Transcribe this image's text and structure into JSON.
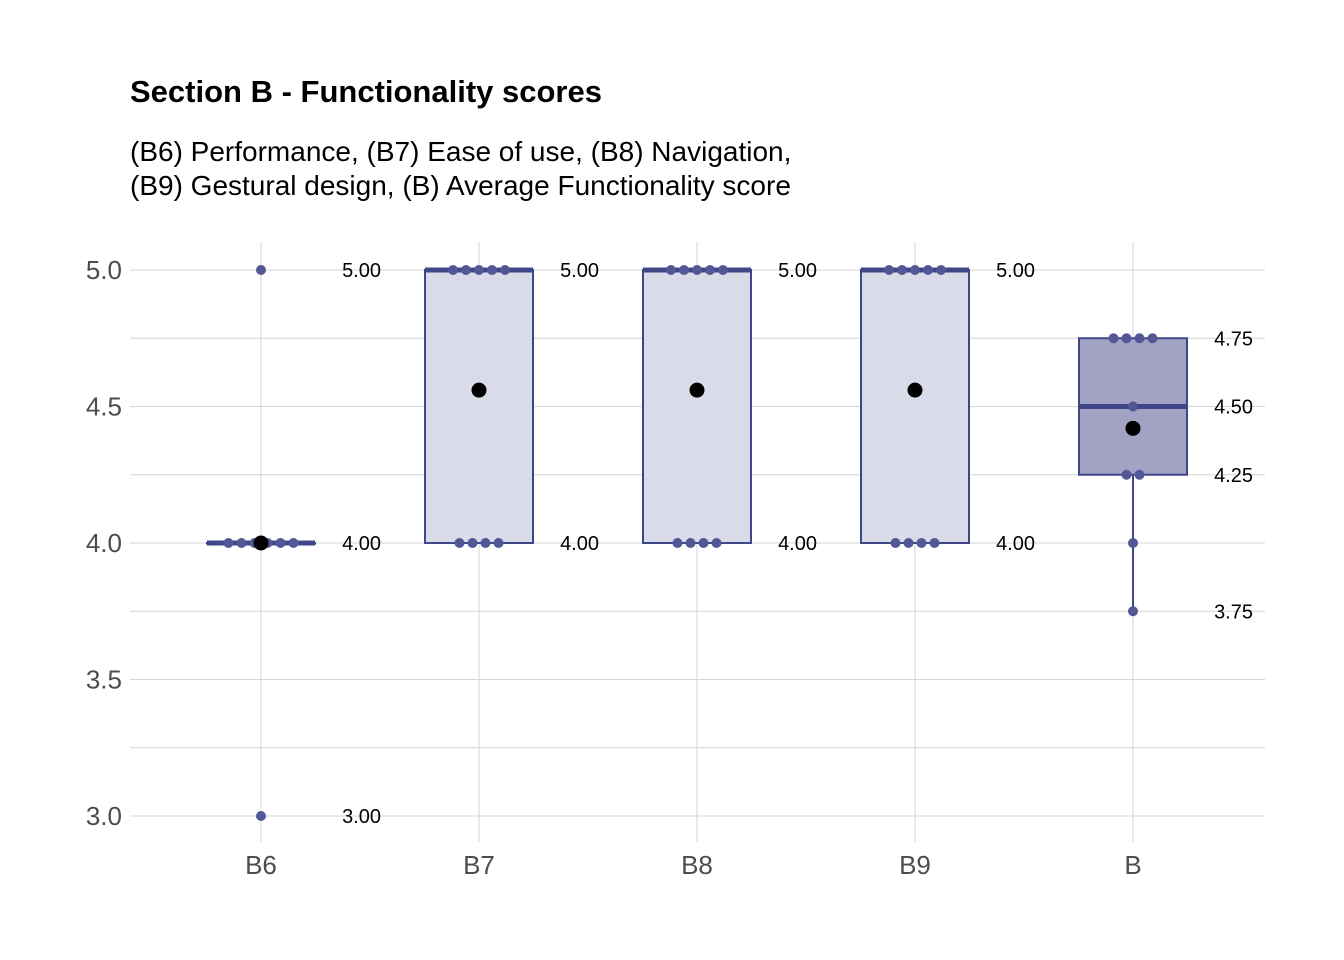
{
  "chart_data": {
    "type": "box",
    "title": "Section B - Functionality scores",
    "subtitle_lines": [
      "(B6) Performance, (B7) Ease of use, (B8) Navigation,",
      "(B9) Gestural design, (B) Average Functionality score"
    ],
    "xlabel": "",
    "ylabel": "",
    "ylim": [
      2.9,
      5.1
    ],
    "y_ticks": [
      "3.0",
      "3.5",
      "4.0",
      "4.5",
      "5.0"
    ],
    "y_tick_values": [
      3.0,
      3.5,
      4.0,
      4.5,
      5.0
    ],
    "categories": [
      "B6",
      "B7",
      "B8",
      "B9",
      "B"
    ],
    "grid": true,
    "colors": {
      "box_light_fill": "#d9dbe9",
      "box_dark_fill": "#a1a2c4",
      "stroke": "#3f4788",
      "point": "#525796",
      "mean": "#000000",
      "grid": "#d4d4d4"
    },
    "boxes": [
      {
        "category": "B6",
        "q1": 4.0,
        "median": 4.0,
        "q3": 4.0,
        "whisker_low": 4.0,
        "whisker_high": 4.0,
        "mean": 4.0,
        "style": "light",
        "points": [
          5.0,
          4.0,
          4.0,
          4.0,
          4.0,
          4.0,
          4.0,
          3.0
        ],
        "labels": [
          {
            "value": 5.0,
            "text": "5.00"
          },
          {
            "value": 4.0,
            "text": "4.00"
          },
          {
            "value": 3.0,
            "text": "3.00"
          }
        ]
      },
      {
        "category": "B7",
        "q1": 4.0,
        "median": 5.0,
        "q3": 5.0,
        "whisker_low": 4.0,
        "whisker_high": 5.0,
        "mean": 4.56,
        "style": "light",
        "points": [
          5.0,
          5.0,
          5.0,
          5.0,
          5.0,
          4.0,
          4.0,
          4.0,
          4.0
        ],
        "labels": [
          {
            "value": 5.0,
            "text": "5.00"
          },
          {
            "value": 4.0,
            "text": "4.00"
          }
        ]
      },
      {
        "category": "B8",
        "q1": 4.0,
        "median": 5.0,
        "q3": 5.0,
        "whisker_low": 4.0,
        "whisker_high": 5.0,
        "mean": 4.56,
        "style": "light",
        "points": [
          5.0,
          5.0,
          5.0,
          5.0,
          5.0,
          4.0,
          4.0,
          4.0,
          4.0
        ],
        "labels": [
          {
            "value": 5.0,
            "text": "5.00"
          },
          {
            "value": 4.0,
            "text": "4.00"
          }
        ]
      },
      {
        "category": "B9",
        "q1": 4.0,
        "median": 5.0,
        "q3": 5.0,
        "whisker_low": 4.0,
        "whisker_high": 5.0,
        "mean": 4.56,
        "style": "light",
        "points": [
          5.0,
          5.0,
          5.0,
          5.0,
          5.0,
          4.0,
          4.0,
          4.0,
          4.0
        ],
        "labels": [
          {
            "value": 5.0,
            "text": "5.00"
          },
          {
            "value": 4.0,
            "text": "4.00"
          }
        ]
      },
      {
        "category": "B",
        "q1": 4.25,
        "median": 4.5,
        "q3": 4.75,
        "whisker_low": 3.75,
        "whisker_high": 4.75,
        "mean": 4.42,
        "style": "dark",
        "points": [
          4.75,
          4.75,
          4.75,
          4.75,
          4.5,
          4.25,
          4.25,
          4.0,
          3.75
        ],
        "labels": [
          {
            "value": 4.75,
            "text": "4.75"
          },
          {
            "value": 4.5,
            "text": "4.50"
          },
          {
            "value": 4.25,
            "text": "4.25"
          },
          {
            "value": 3.75,
            "text": "3.75"
          }
        ]
      }
    ]
  }
}
